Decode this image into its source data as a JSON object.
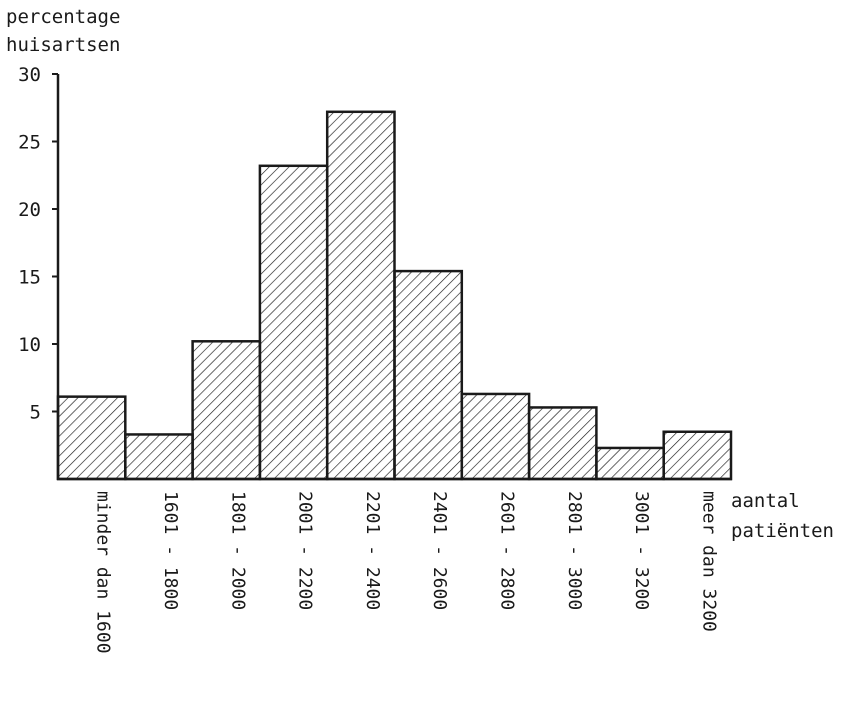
{
  "chart_data": {
    "type": "bar",
    "title": "",
    "ylabel": [
      "percentage",
      "huisartsen"
    ],
    "xlabel": [
      "aantal",
      "patiënten"
    ],
    "ylim": [
      0,
      30
    ],
    "yticks": [
      5,
      10,
      15,
      20,
      25,
      30
    ],
    "grid": false,
    "legend": "none",
    "categories": [
      "minder dan 1600",
      "1601 - 1800",
      "1801 - 2000",
      "2001 - 2200",
      "2201 - 2400",
      "2401 - 2600",
      "2601 - 2800",
      "2801 - 3000",
      "3001 - 3200",
      "meer dan 3200"
    ],
    "values": [
      6.1,
      3.3,
      10.2,
      23.2,
      27.2,
      15.4,
      6.3,
      5.3,
      2.3,
      3.5
    ],
    "bar_fill": "hatched",
    "color": "#1a1a1a"
  }
}
